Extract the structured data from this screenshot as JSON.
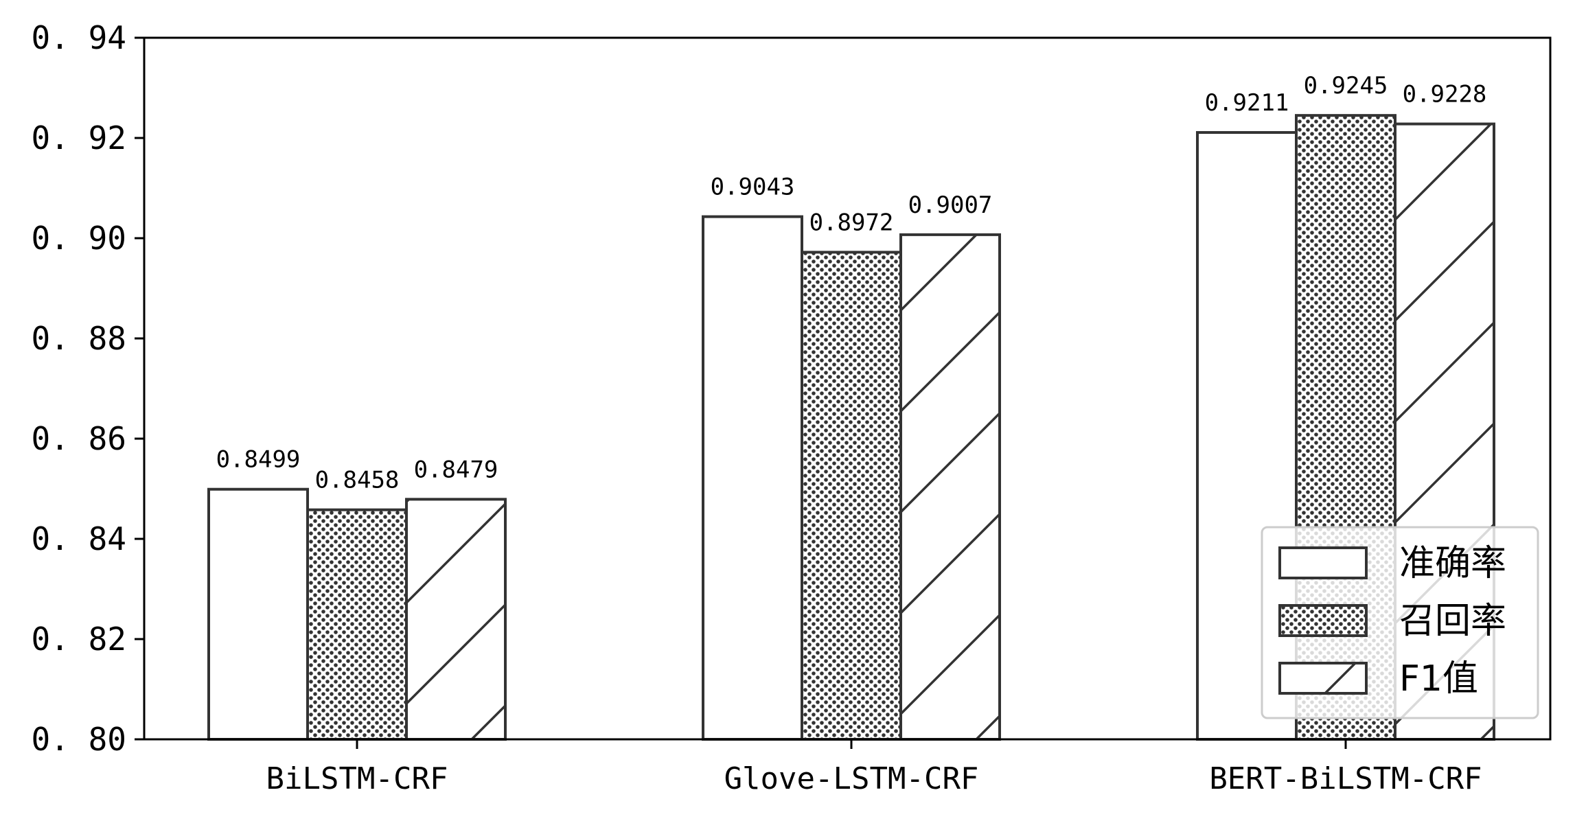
{
  "chart_data": {
    "type": "bar",
    "categories": [
      "BiLSTM-CRF",
      "Glove-LSTM-CRF",
      "BERT-BiLSTM-CRF"
    ],
    "series": [
      {
        "name": "准确率",
        "values": [
          0.8499,
          0.9043,
          0.9211
        ],
        "pattern": "plain"
      },
      {
        "name": "召回率",
        "values": [
          0.8458,
          0.8972,
          0.9245
        ],
        "pattern": "dots"
      },
      {
        "name": "F1值",
        "values": [
          0.8479,
          0.9007,
          0.9228
        ],
        "pattern": "hatch"
      }
    ],
    "data_labels": [
      [
        "0.8499",
        "0.9043",
        "0.9211"
      ],
      [
        "0.8458",
        "0.8972",
        "0.9245"
      ],
      [
        "0.8479",
        "0.9007",
        "0.9228"
      ]
    ],
    "ylim": [
      0.8,
      0.94
    ],
    "yticks": [
      "0.80",
      "0.82",
      "0.84",
      "0.86",
      "0.88",
      "0.90",
      "0.92",
      "0.94"
    ],
    "legend_position": "lower-right",
    "grid": false,
    "colors": {
      "edge": "#333333",
      "fill": "#ffffff",
      "dots": "#333333"
    }
  }
}
